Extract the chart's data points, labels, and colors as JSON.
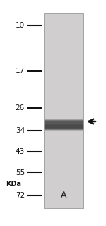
{
  "kda_labels": [
    "72",
    "55",
    "43",
    "34",
    "26",
    "17",
    "10"
  ],
  "kda_positions": [
    72,
    55,
    43,
    34,
    26,
    17,
    10
  ],
  "kda_unit": "KDa",
  "lane_label": "A",
  "band_kda": 31,
  "log_min": 9,
  "log_max": 80,
  "background_color": "#d0cece",
  "band_color": "#4a4a4a",
  "marker_line_color": "#111111",
  "marker_label_color": "#111111",
  "arrow_color": "#111111",
  "fig_bg": "#ffffff"
}
